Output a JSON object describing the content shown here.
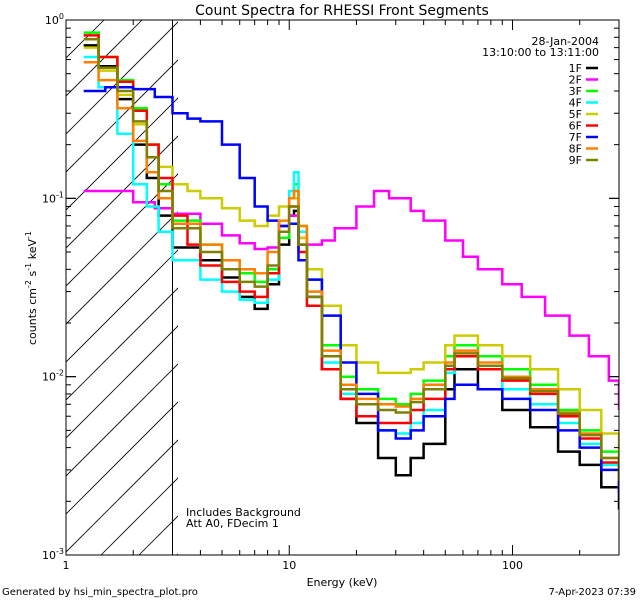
{
  "chart_data": {
    "type": "line",
    "title": "Count Spectra for RHESSI Front Segments",
    "xlabel": "Energy (keV)",
    "ylabel": {
      "base": "counts cm",
      "exp1": "-2",
      "mid": " s",
      "exp2": "-1",
      "mid2": " keV",
      "exp3": "-1"
    },
    "xscale": "log",
    "yscale": "log",
    "xlim": [
      1,
      300
    ],
    "ylim": [
      0.001,
      1
    ],
    "x_ticks": [
      {
        "value": 1,
        "label": "1"
      },
      {
        "value": 10,
        "label": "10"
      },
      {
        "value": 100,
        "label": "100"
      }
    ],
    "y_ticks": [
      {
        "value": 0.001,
        "base": "10",
        "exp": "-3"
      },
      {
        "value": 0.01,
        "base": "10",
        "exp": "-2"
      },
      {
        "value": 0.1,
        "base": "10",
        "exp": "-1"
      },
      {
        "value": 1,
        "base": "10",
        "exp": "0"
      }
    ],
    "date": "28-Jan-2004",
    "time_range": "13:10:00 to 13:11:00",
    "attenuator_cutoff_kev": 3,
    "notes": [
      "Includes Background",
      "Att A0, FDecim 1"
    ],
    "footer_left": "Generated by hsi_min_spectra_plot.pro",
    "footer_right": "7-Apr-2023 07:39",
    "series": [
      {
        "name": "1F",
        "color": "#000000",
        "points": [
          [
            1.2,
            0.72
          ],
          [
            1.4,
            0.55
          ],
          [
            1.7,
            0.36
          ],
          [
            2.0,
            0.2
          ],
          [
            2.3,
            0.13
          ],
          [
            2.6,
            0.08
          ],
          [
            3.0,
            0.053
          ],
          [
            4,
            0.045
          ],
          [
            5,
            0.036
          ],
          [
            6,
            0.028
          ],
          [
            7,
            0.024
          ],
          [
            8,
            0.033
          ],
          [
            9,
            0.055
          ],
          [
            10,
            0.08
          ],
          [
            10.5,
            0.085
          ],
          [
            11,
            0.055
          ],
          [
            12,
            0.028
          ],
          [
            14,
            0.011
          ],
          [
            17,
            0.0075
          ],
          [
            20,
            0.0055
          ],
          [
            25,
            0.0035
          ],
          [
            30,
            0.0028
          ],
          [
            35,
            0.0035
          ],
          [
            40,
            0.0042
          ],
          [
            50,
            0.0085
          ],
          [
            55,
            0.011
          ],
          [
            70,
            0.0085
          ],
          [
            90,
            0.0065
          ],
          [
            120,
            0.0052
          ],
          [
            160,
            0.0038
          ],
          [
            200,
            0.0032
          ],
          [
            250,
            0.0024
          ],
          [
            300,
            0.0018
          ]
        ]
      },
      {
        "name": "2F",
        "color": "#ff00ff",
        "points": [
          [
            1.2,
            0.11
          ],
          [
            1.5,
            0.11
          ],
          [
            2.0,
            0.095
          ],
          [
            2.5,
            0.088
          ],
          [
            3.0,
            0.082
          ],
          [
            4,
            0.072
          ],
          [
            5,
            0.062
          ],
          [
            6,
            0.056
          ],
          [
            7,
            0.052
          ],
          [
            8,
            0.053
          ],
          [
            9,
            0.065
          ],
          [
            10,
            0.08
          ],
          [
            11,
            0.06
          ],
          [
            12,
            0.055
          ],
          [
            14,
            0.058
          ],
          [
            16,
            0.068
          ],
          [
            20,
            0.09
          ],
          [
            24,
            0.11
          ],
          [
            28,
            0.1
          ],
          [
            35,
            0.085
          ],
          [
            40,
            0.075
          ],
          [
            50,
            0.058
          ],
          [
            60,
            0.047
          ],
          [
            70,
            0.04
          ],
          [
            90,
            0.033
          ],
          [
            110,
            0.028
          ],
          [
            140,
            0.022
          ],
          [
            180,
            0.017
          ],
          [
            220,
            0.013
          ],
          [
            270,
            0.0095
          ],
          [
            300,
            0.0065
          ]
        ]
      },
      {
        "name": "3F",
        "color": "#00ff00",
        "points": [
          [
            1.2,
            0.85
          ],
          [
            1.4,
            0.62
          ],
          [
            1.7,
            0.46
          ],
          [
            2.0,
            0.32
          ],
          [
            2.3,
            0.2
          ],
          [
            2.6,
            0.12
          ],
          [
            3.0,
            0.075
          ],
          [
            4,
            0.055
          ],
          [
            5,
            0.045
          ],
          [
            6,
            0.038
          ],
          [
            7,
            0.034
          ],
          [
            8,
            0.04
          ],
          [
            9,
            0.06
          ],
          [
            10,
            0.1
          ],
          [
            10.5,
            0.12
          ],
          [
            11,
            0.07
          ],
          [
            12,
            0.035
          ],
          [
            14,
            0.015
          ],
          [
            17,
            0.01
          ],
          [
            20,
            0.0085
          ],
          [
            25,
            0.0075
          ],
          [
            30,
            0.007
          ],
          [
            35,
            0.008
          ],
          [
            40,
            0.0095
          ],
          [
            50,
            0.013
          ],
          [
            55,
            0.015
          ],
          [
            70,
            0.013
          ],
          [
            90,
            0.011
          ],
          [
            120,
            0.009
          ],
          [
            160,
            0.0065
          ],
          [
            200,
            0.005
          ],
          [
            250,
            0.0038
          ],
          [
            300,
            0.0028
          ]
        ]
      },
      {
        "name": "4F",
        "color": "#00ffff",
        "points": [
          [
            1.2,
            0.62
          ],
          [
            1.4,
            0.42
          ],
          [
            1.7,
            0.23
          ],
          [
            2.0,
            0.12
          ],
          [
            2.3,
            0.09
          ],
          [
            2.6,
            0.065
          ],
          [
            3.0,
            0.045
          ],
          [
            4,
            0.035
          ],
          [
            5,
            0.03
          ],
          [
            6,
            0.027
          ],
          [
            7,
            0.026
          ],
          [
            8,
            0.035
          ],
          [
            9,
            0.07
          ],
          [
            10,
            0.11
          ],
          [
            10.5,
            0.14
          ],
          [
            11,
            0.065
          ],
          [
            12,
            0.03
          ],
          [
            14,
            0.012
          ],
          [
            17,
            0.008
          ],
          [
            20,
            0.006
          ],
          [
            25,
            0.005
          ],
          [
            30,
            0.0048
          ],
          [
            35,
            0.0055
          ],
          [
            40,
            0.0065
          ],
          [
            50,
            0.0105
          ],
          [
            55,
            0.013
          ],
          [
            70,
            0.011
          ],
          [
            90,
            0.0085
          ],
          [
            120,
            0.007
          ],
          [
            160,
            0.0055
          ],
          [
            200,
            0.0042
          ],
          [
            250,
            0.0032
          ],
          [
            300,
            0.0024
          ]
        ]
      },
      {
        "name": "5F",
        "color": "#cccc00",
        "points": [
          [
            1.2,
            0.7
          ],
          [
            1.4,
            0.52
          ],
          [
            1.7,
            0.38
          ],
          [
            2.0,
            0.26
          ],
          [
            2.3,
            0.2
          ],
          [
            2.6,
            0.15
          ],
          [
            3.0,
            0.12
          ],
          [
            3.5,
            0.11
          ],
          [
            4,
            0.1
          ],
          [
            5,
            0.088
          ],
          [
            6,
            0.075
          ],
          [
            7,
            0.07
          ],
          [
            8,
            0.08
          ],
          [
            9,
            0.09
          ],
          [
            10,
            0.1
          ],
          [
            11,
            0.06
          ],
          [
            12,
            0.04
          ],
          [
            14,
            0.025
          ],
          [
            17,
            0.015
          ],
          [
            20,
            0.012
          ],
          [
            25,
            0.0105
          ],
          [
            30,
            0.0105
          ],
          [
            35,
            0.011
          ],
          [
            40,
            0.012
          ],
          [
            50,
            0.015
          ],
          [
            55,
            0.017
          ],
          [
            70,
            0.015
          ],
          [
            90,
            0.013
          ],
          [
            120,
            0.011
          ],
          [
            160,
            0.0085
          ],
          [
            200,
            0.0065
          ],
          [
            250,
            0.0048
          ],
          [
            300,
            0.0035
          ]
        ]
      },
      {
        "name": "6F",
        "color": "#ff0000",
        "points": [
          [
            1.2,
            0.82
          ],
          [
            1.4,
            0.62
          ],
          [
            1.7,
            0.45
          ],
          [
            2.0,
            0.31
          ],
          [
            2.3,
            0.2
          ],
          [
            2.6,
            0.13
          ],
          [
            3.0,
            0.08
          ],
          [
            3.5,
            0.055
          ],
          [
            4,
            0.042
          ],
          [
            5,
            0.034
          ],
          [
            6,
            0.03
          ],
          [
            7,
            0.028
          ],
          [
            8,
            0.038
          ],
          [
            9,
            0.07
          ],
          [
            10,
            0.09
          ],
          [
            11,
            0.05
          ],
          [
            12,
            0.025
          ],
          [
            14,
            0.011
          ],
          [
            17,
            0.0075
          ],
          [
            20,
            0.006
          ],
          [
            25,
            0.0055
          ],
          [
            30,
            0.0055
          ],
          [
            35,
            0.0065
          ],
          [
            40,
            0.0075
          ],
          [
            50,
            0.011
          ],
          [
            55,
            0.013
          ],
          [
            70,
            0.011
          ],
          [
            90,
            0.0095
          ],
          [
            120,
            0.008
          ],
          [
            160,
            0.006
          ],
          [
            200,
            0.0045
          ],
          [
            250,
            0.0033
          ],
          [
            300,
            0.0024
          ]
        ]
      },
      {
        "name": "7F",
        "color": "#0000ff",
        "points": [
          [
            1.2,
            0.4
          ],
          [
            1.5,
            0.42
          ],
          [
            2.0,
            0.41
          ],
          [
            2.5,
            0.37
          ],
          [
            3.0,
            0.3
          ],
          [
            3.5,
            0.28
          ],
          [
            4,
            0.27
          ],
          [
            5,
            0.2
          ],
          [
            6,
            0.13
          ],
          [
            7,
            0.09
          ],
          [
            8,
            0.075
          ],
          [
            9,
            0.07
          ],
          [
            10,
            0.072
          ],
          [
            11,
            0.045
          ],
          [
            12,
            0.035
          ],
          [
            14,
            0.022
          ],
          [
            17,
            0.012
          ],
          [
            20,
            0.008
          ],
          [
            25,
            0.005
          ],
          [
            30,
            0.0045
          ],
          [
            35,
            0.005
          ],
          [
            40,
            0.006
          ],
          [
            50,
            0.0075
          ],
          [
            55,
            0.009
          ],
          [
            70,
            0.0085
          ],
          [
            90,
            0.0075
          ],
          [
            120,
            0.0065
          ],
          [
            160,
            0.005
          ],
          [
            200,
            0.004
          ],
          [
            250,
            0.003
          ],
          [
            300,
            0.0022
          ]
        ]
      },
      {
        "name": "8F",
        "color": "#ff8000",
        "points": [
          [
            1.2,
            0.58
          ],
          [
            1.4,
            0.46
          ],
          [
            1.7,
            0.32
          ],
          [
            2.0,
            0.21
          ],
          [
            2.3,
            0.14
          ],
          [
            2.6,
            0.1
          ],
          [
            3.0,
            0.072
          ],
          [
            4,
            0.055
          ],
          [
            5,
            0.045
          ],
          [
            6,
            0.04
          ],
          [
            7,
            0.038
          ],
          [
            8,
            0.05
          ],
          [
            9,
            0.075
          ],
          [
            10,
            0.1
          ],
          [
            10.5,
            0.11
          ],
          [
            11,
            0.07
          ],
          [
            12,
            0.03
          ],
          [
            14,
            0.014
          ],
          [
            17,
            0.009
          ],
          [
            20,
            0.0075
          ],
          [
            25,
            0.007
          ],
          [
            30,
            0.0068
          ],
          [
            35,
            0.0075
          ],
          [
            40,
            0.009
          ],
          [
            50,
            0.012
          ],
          [
            55,
            0.014
          ],
          [
            70,
            0.012
          ],
          [
            90,
            0.01
          ],
          [
            120,
            0.0085
          ],
          [
            160,
            0.0063
          ],
          [
            200,
            0.0048
          ],
          [
            250,
            0.0035
          ],
          [
            300,
            0.0026
          ]
        ]
      },
      {
        "name": "9F",
        "color": "#808000",
        "points": [
          [
            1.2,
            0.78
          ],
          [
            1.4,
            0.54
          ],
          [
            1.7,
            0.4
          ],
          [
            2.0,
            0.27
          ],
          [
            2.3,
            0.17
          ],
          [
            2.6,
            0.11
          ],
          [
            3.0,
            0.068
          ],
          [
            4,
            0.05
          ],
          [
            5,
            0.04
          ],
          [
            6,
            0.034
          ],
          [
            7,
            0.032
          ],
          [
            8,
            0.042
          ],
          [
            9,
            0.065
          ],
          [
            10,
            0.09
          ],
          [
            11,
            0.055
          ],
          [
            12,
            0.028
          ],
          [
            14,
            0.013
          ],
          [
            17,
            0.0085
          ],
          [
            20,
            0.007
          ],
          [
            25,
            0.0065
          ],
          [
            30,
            0.0063
          ],
          [
            35,
            0.0072
          ],
          [
            40,
            0.0085
          ],
          [
            50,
            0.0115
          ],
          [
            55,
            0.0135
          ],
          [
            70,
            0.0115
          ],
          [
            90,
            0.0098
          ],
          [
            120,
            0.0083
          ],
          [
            160,
            0.0062
          ],
          [
            200,
            0.0047
          ],
          [
            250,
            0.0035
          ],
          [
            300,
            0.0026
          ]
        ]
      }
    ]
  }
}
